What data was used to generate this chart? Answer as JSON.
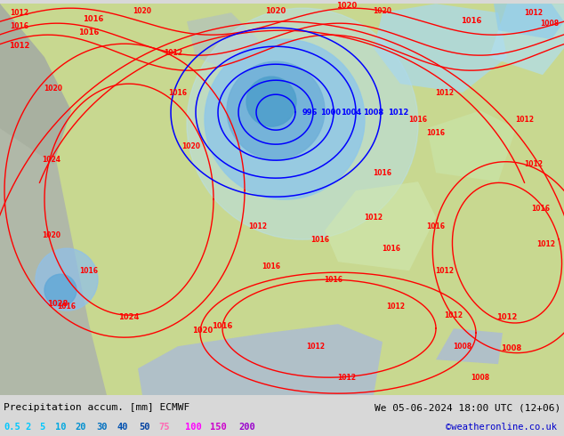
{
  "title_left": "Precipitation accum. [mm] ECMWF",
  "title_right": "We 05-06-2024 18:00 UTC (12+06)",
  "credit": "©weatheronline.co.uk",
  "legend_values": [
    "0.5",
    "2",
    "5",
    "10",
    "20",
    "30",
    "40",
    "50",
    "75",
    "100",
    "150",
    "200"
  ],
  "legend_colors": [
    "#00bfff",
    "#00bfff",
    "#00bfff",
    "#00bfff",
    "#00bfff",
    "#00bfff",
    "#00bfff",
    "#00bfff",
    "#ff69b4",
    "#ff00ff",
    "#9400d3",
    "#8b008b"
  ],
  "bg_color": "#d8d8d8",
  "bottom_bar_color": "#d0d0d0",
  "fig_width": 6.34,
  "fig_height": 4.9,
  "dpi": 100,
  "map_area_color": "#c8d8a0",
  "ocean_color": "#b8c8b8",
  "precip_light_blue": "#a0d8f0",
  "precip_cyan": "#80c8e8",
  "land_green": "#b8d888",
  "land_light": "#d0e0a8"
}
